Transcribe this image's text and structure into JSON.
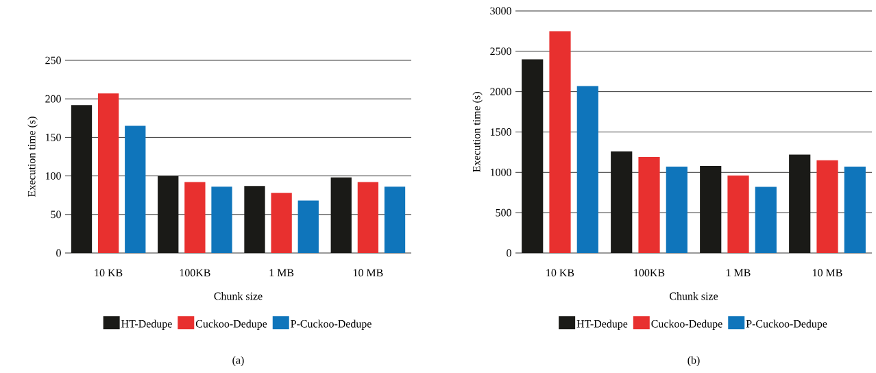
{
  "chart_data": [
    {
      "type": "bar",
      "xlabel": "Chunk size",
      "ylabel": "Execution time (s)",
      "categories": [
        "10 KB",
        "100KB",
        "1 MB",
        "10 MB"
      ],
      "series": [
        {
          "name": "HT-Dedupe",
          "color": "#1a1a17",
          "values": [
            192,
            100,
            87,
            98
          ]
        },
        {
          "name": "Cuckoo-Dedupe",
          "color": "#e8302f",
          "values": [
            207,
            92,
            78,
            92
          ]
        },
        {
          "name": "P-Cuckoo-Dedupe",
          "color": "#0f75bb",
          "values": [
            165,
            86,
            68,
            86
          ]
        }
      ],
      "ylim": [
        0,
        250
      ],
      "yticks": [
        0,
        50,
        100,
        150,
        200,
        250
      ],
      "grid": "y",
      "legend": "bottom",
      "annotations": [
        "(a)"
      ]
    },
    {
      "type": "bar",
      "xlabel": "Chunk size",
      "ylabel": "Execution time (s)",
      "categories": [
        "10 KB",
        "100KB",
        "1 MB",
        "10 MB"
      ],
      "series": [
        {
          "name": "HT-Dedupe",
          "color": "#1a1a17",
          "values": [
            2400,
            1260,
            1080,
            1220
          ]
        },
        {
          "name": "Cuckoo-Dedupe",
          "color": "#e8302f",
          "values": [
            2750,
            1190,
            960,
            1150
          ]
        },
        {
          "name": "P-Cuckoo-Dedupe",
          "color": "#0f75bb",
          "values": [
            2070,
            1070,
            820,
            1070
          ]
        }
      ],
      "ylim": [
        0,
        3000
      ],
      "yticks": [
        0,
        500,
        1000,
        1500,
        2000,
        2500,
        3000
      ],
      "grid": "y",
      "legend": "bottom",
      "annotations": [
        "(b)"
      ]
    }
  ]
}
